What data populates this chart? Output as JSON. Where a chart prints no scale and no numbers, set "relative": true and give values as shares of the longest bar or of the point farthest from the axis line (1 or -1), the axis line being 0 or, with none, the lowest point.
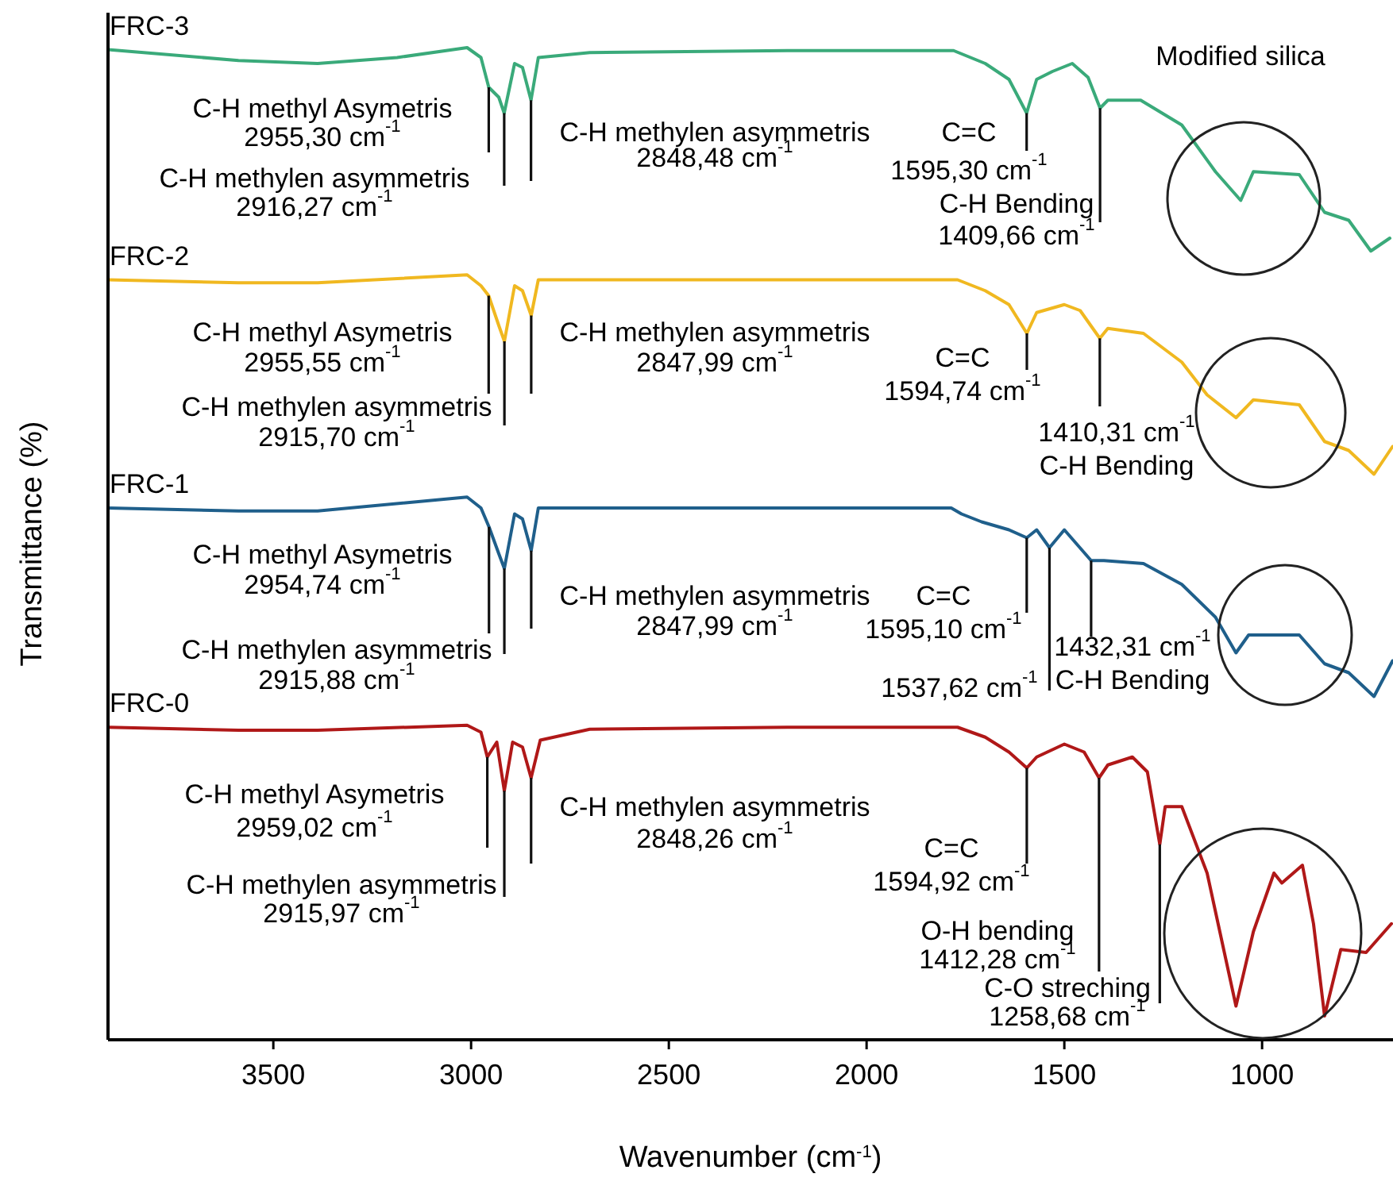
{
  "chart_data": {
    "type": "line",
    "relative": true,
    "legend": false,
    "xlabel": "Wavenumber (cm$^{-1}$)",
    "ylabel": "Transmittance (%)",
    "xlim": [
      3918,
      669
    ],
    "xticks": [
      3500,
      3000,
      2500,
      2000,
      1500,
      1000
    ],
    "series": [
      {
        "name": "FRC-3",
        "color": "#3aaa7a",
        "x": [
          3918,
          3588,
          3388,
          3187,
          3010,
          2975,
          2955.3,
          2930,
          2916.27,
          2890,
          2870,
          2848.48,
          2830,
          2700,
          2200,
          1780,
          1700,
          1640,
          1595.3,
          1570,
          1530,
          1480,
          1440,
          1409.66,
          1390,
          1307,
          1203,
          1118,
          1054,
          1022,
          906,
          842,
          781,
          725,
          677
        ],
        "values": [
          0.998,
          0.987,
          0.984,
          0.99,
          1,
          0.99,
          0.96,
          0.95,
          0.934,
          0.984,
          0.98,
          0.947,
          0.99,
          0.995,
          0.997,
          0.997,
          0.984,
          0.968,
          0.934,
          0.968,
          0.976,
          0.984,
          0.97,
          0.939,
          0.947,
          0.947,
          0.922,
          0.875,
          0.846,
          0.875,
          0.872,
          0.834,
          0.826,
          0.795,
          0.808
        ]
      },
      {
        "name": "FRC-2",
        "color": "#f0b820",
        "x": [
          3918,
          3588,
          3388,
          3010,
          2975,
          2955.55,
          2930,
          2915.7,
          2890,
          2870,
          2847.99,
          2830,
          2700,
          2200,
          1770,
          1700,
          1640,
          1594.74,
          1570,
          1500,
          1460,
          1410.31,
          1390,
          1300,
          1203,
          1139,
          1066,
          1022,
          906,
          842,
          781,
          717,
          670
        ],
        "values": [
          0.766,
          0.763,
          0.763,
          0.771,
          0.76,
          0.75,
          0.72,
          0.704,
          0.76,
          0.755,
          0.73,
          0.766,
          0.766,
          0.766,
          0.766,
          0.755,
          0.741,
          0.712,
          0.733,
          0.741,
          0.735,
          0.707,
          0.717,
          0.712,
          0.683,
          0.65,
          0.627,
          0.645,
          0.64,
          0.603,
          0.594,
          0.57,
          0.598
        ]
      },
      {
        "name": "FRC-1",
        "color": "#1f5f8b",
        "x": [
          3918,
          3588,
          3388,
          3010,
          2975,
          2954.74,
          2930,
          2915.88,
          2890,
          2870,
          2847.99,
          2830,
          2700,
          2200,
          1786,
          1760,
          1709,
          1640,
          1595.1,
          1570,
          1537.62,
          1500,
          1432.31,
          1400,
          1300,
          1203,
          1118,
          1066,
          1034,
          906,
          842,
          781,
          717,
          670
        ],
        "values": [
          0.536,
          0.533,
          0.533,
          0.547,
          0.536,
          0.517,
          0.49,
          0.475,
          0.53,
          0.525,
          0.493,
          0.536,
          0.536,
          0.536,
          0.536,
          0.53,
          0.522,
          0.514,
          0.506,
          0.514,
          0.496,
          0.514,
          0.483,
          0.483,
          0.48,
          0.459,
          0.426,
          0.39,
          0.408,
          0.408,
          0.379,
          0.37,
          0.346,
          0.382
        ]
      },
      {
        "name": "FRC-0",
        "color": "#b01818",
        "x": [
          3918,
          3588,
          3388,
          3010,
          2975,
          2959.02,
          2935,
          2915.97,
          2895,
          2870,
          2848.26,
          2825,
          2700,
          2200,
          1770,
          1700,
          1640,
          1594.92,
          1570,
          1500,
          1450,
          1412.28,
          1390,
          1328,
          1290,
          1258.68,
          1245,
          1203,
          1139,
          1066,
          1022,
          970,
          950,
          898,
          870,
          842,
          801,
          737,
          673
        ],
        "values": [
          0.315,
          0.312,
          0.312,
          0.317,
          0.31,
          0.285,
          0.3,
          0.251,
          0.3,
          0.295,
          0.264,
          0.302,
          0.313,
          0.315,
          0.315,
          0.305,
          0.29,
          0.274,
          0.285,
          0.298,
          0.29,
          0.264,
          0.277,
          0.285,
          0.27,
          0.197,
          0.235,
          0.235,
          0.168,
          0.034,
          0.109,
          0.168,
          0.158,
          0.176,
          0.117,
          0.024,
          0.091,
          0.088,
          0.117
        ]
      }
    ],
    "annotations": [
      {
        "text": "C-H methyl Asymetris\n2955,30 cm$^{-1}$",
        "x": 2955.3,
        "y": 0.96
      },
      {
        "text": "C-H methylen asymmetris\n2916,27 cm$^{-1}$",
        "x": 2916.27,
        "y": 0.934
      },
      {
        "text": "C-H methylen asymmetris\n2848,48 cm$^{-1}$",
        "x": 2848.48,
        "y": 0.947
      },
      {
        "text": "C=C\n1595,30 cm$^{-1}$",
        "x": 1595.3,
        "y": 0.934
      },
      {
        "text": "C-H Bending\n1409,66 cm$^{-1}$",
        "x": 1409.66,
        "y": 0.939
      },
      "Modified silica",
      {
        "text": "C-H methyl Asymetris\n2955,55 cm$^{-1}$",
        "x": 2955.55,
        "y": 0.75
      },
      {
        "text": "C-H methylen asymmetris\n2915,70 cm$^{-1}$",
        "x": 2915.7,
        "y": 0.704
      },
      {
        "text": "C-H methylen asymmetris\n2847,99 cm$^{-1}$",
        "x": 2847.99,
        "y": 0.73
      },
      {
        "text": "C=C\n1594,74 cm$^{-1}$",
        "x": 1594.74,
        "y": 0.712
      },
      {
        "text": "1410,31 cm$^{-1}$\nC-H Bending",
        "x": 1410.31,
        "y": 0.707
      },
      {
        "text": "C-H methyl Asymetris\n2954,74 cm$^{-1}$",
        "x": 2954.74,
        "y": 0.517
      },
      {
        "text": "C-H methylen asymmetris\n2915,88 cm$^{-1}$",
        "x": 2915.88,
        "y": 0.475
      },
      {
        "text": "C-H methylen asymmetris\n2847,99 cm$^{-1}$",
        "x": 2847.99,
        "y": 0.493
      },
      {
        "text": "C=C\n1595,10 cm$^{-1}$",
        "x": 1595.1,
        "y": 0.506
      },
      {
        "text": "1537,62 cm$^{-1}$",
        "x": 1537.62,
        "y": 0.496
      },
      {
        "text": "1432,31 cm$^{-1}$\nC-H Bending",
        "x": 1432.31,
        "y": 0.483
      },
      {
        "text": "C-H methyl Asymetris\n2959,02 cm$^{-1}$",
        "x": 2959.02,
        "y": 0.285
      },
      {
        "text": "C-H methylen asymmetris\n2915,97 cm$^{-1}$",
        "x": 2915.97,
        "y": 0.251
      },
      {
        "text": "C-H methylen asymmetris\n2848,26 cm$^{-1}$",
        "x": 2848.26,
        "y": 0.264
      },
      {
        "text": "C=C\n1594,92 cm$^{-1}$",
        "x": 1594.92,
        "y": 0.274
      },
      {
        "text": "O-H bending\n1412,28 cm$^{-1}$",
        "x": 1412.28,
        "y": 0.264
      },
      {
        "text": "C-O streching\n1258,68 cm$^{-1}$",
        "x": 1258.68,
        "y": 0.197
      }
    ]
  }
}
